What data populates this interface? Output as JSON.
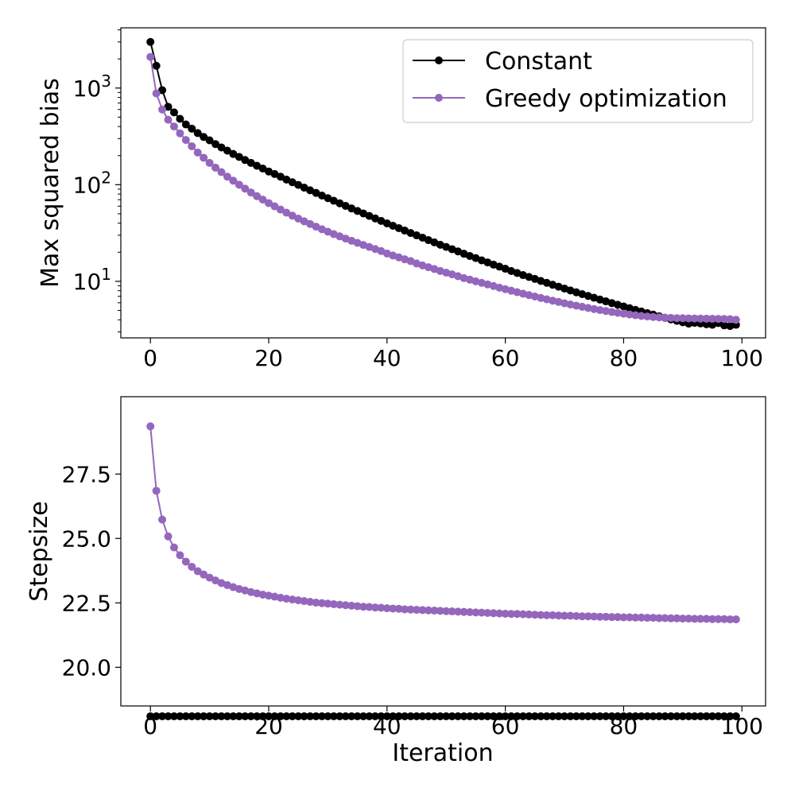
{
  "figure": {
    "xlabel": "Iteration",
    "legend": {
      "placement": "top-right",
      "entries": [
        "Constant",
        "Greedy optimization"
      ]
    }
  },
  "colors": {
    "constant": "#000000",
    "greedy": "#9467bd"
  },
  "chart_data": [
    {
      "type": "line",
      "title": "",
      "xlabel": "",
      "ylabel": "Max squared bias",
      "yscale": "log",
      "xlim": [
        -5,
        104
      ],
      "ylim": [
        2.6,
        4200
      ],
      "xticks": [
        0,
        20,
        40,
        60,
        80,
        100
      ],
      "xtick_labels": [
        "0",
        "20",
        "40",
        "60",
        "80",
        "100"
      ],
      "yticks": [
        10,
        100,
        1000
      ],
      "ytick_labels": [
        "10^1",
        "10^2",
        "10^3"
      ],
      "grid": false,
      "legend": "top-right",
      "x": [
        0,
        1,
        2,
        3,
        4,
        5,
        6,
        7,
        8,
        9,
        10,
        11,
        12,
        13,
        14,
        15,
        16,
        17,
        18,
        19,
        20,
        21,
        22,
        23,
        24,
        25,
        26,
        27,
        28,
        29,
        30,
        31,
        32,
        33,
        34,
        35,
        36,
        37,
        38,
        39,
        40,
        41,
        42,
        43,
        44,
        45,
        46,
        47,
        48,
        49,
        50,
        51,
        52,
        53,
        54,
        55,
        56,
        57,
        58,
        59,
        60,
        61,
        62,
        63,
        64,
        65,
        66,
        67,
        68,
        69,
        70,
        71,
        72,
        73,
        74,
        75,
        76,
        77,
        78,
        79,
        80,
        81,
        82,
        83,
        84,
        85,
        86,
        87,
        88,
        89,
        90,
        91,
        92,
        93,
        94,
        95,
        96,
        97,
        98,
        99
      ],
      "series": [
        {
          "name": "Constant",
          "values": [
            3000,
            1700,
            950,
            640,
            560,
            480,
            420,
            380,
            342,
            312,
            288,
            263,
            243,
            225,
            208,
            194,
            180,
            168,
            157,
            147,
            137,
            129,
            121,
            113,
            106,
            99.4,
            93.3,
            87.5,
            82.2,
            77.2,
            72.6,
            68.2,
            64.2,
            60.4,
            56.8,
            53.5,
            50.4,
            47.5,
            44.8,
            42.2,
            39.8,
            37.6,
            35.5,
            33.5,
            31.6,
            29.9,
            28.3,
            26.7,
            25.3,
            23.9,
            22.7,
            21.5,
            20.4,
            19.3,
            18.3,
            17.4,
            16.5,
            15.7,
            14.9,
            14.2,
            13.5,
            12.8,
            12.2,
            11.6,
            11.1,
            10.6,
            10.1,
            9.65,
            9.22,
            8.81,
            8.42,
            8.05,
            7.7,
            7.37,
            7.06,
            6.76,
            6.48,
            6.21,
            5.96,
            5.72,
            5.5,
            5.28,
            5.07,
            4.88,
            4.69,
            4.52,
            4.35,
            4.19,
            4.04,
            3.9,
            3.77,
            3.65,
            3.72,
            3.67,
            3.6,
            3.55,
            3.7,
            3.5,
            3.45,
            3.55
          ]
        },
        {
          "name": "Greedy optimization",
          "values": [
            2100,
            880,
            600,
            470,
            400,
            340,
            290,
            250,
            215,
            190,
            168,
            150,
            135,
            121,
            110,
            100,
            91,
            83,
            76,
            70,
            64.5,
            59.7,
            55.3,
            51.3,
            47.8,
            44.6,
            41.8,
            39.2,
            36.8,
            34.6,
            32.6,
            30.8,
            29.2,
            27.7,
            26.3,
            25.0,
            23.8,
            22.7,
            21.6,
            20.6,
            19.4,
            18.5,
            17.7,
            16.9,
            16.2,
            15.3,
            14.6,
            14.0,
            13.4,
            12.8,
            12.3,
            11.8,
            11.3,
            10.8,
            10.4,
            10.0,
            9.65,
            9.3,
            8.95,
            8.6,
            8.3,
            8.0,
            7.72,
            7.45,
            7.2,
            6.96,
            6.73,
            6.52,
            6.31,
            6.12,
            5.93,
            5.76,
            5.6,
            5.45,
            5.3,
            5.17,
            5.05,
            4.93,
            4.82,
            4.72,
            4.62,
            4.54,
            4.46,
            4.39,
            4.33,
            4.28,
            4.24,
            4.21,
            4.18,
            4.16,
            4.15,
            4.14,
            4.13,
            4.12,
            4.11,
            4.1,
            4.09,
            4.08,
            4.06,
            4.0
          ]
        }
      ]
    },
    {
      "type": "line",
      "title": "",
      "xlabel": "Iteration",
      "ylabel": "Stepsize",
      "yscale": "linear",
      "xlim": [
        -5,
        104
      ],
      "ylim": [
        18.5,
        30.5
      ],
      "xticks": [
        0,
        20,
        40,
        60,
        80,
        100
      ],
      "xtick_labels": [
        "0",
        "20",
        "40",
        "60",
        "80",
        "100"
      ],
      "yticks": [
        20.0,
        22.5,
        25.0,
        27.5
      ],
      "ytick_labels": [
        "20.0",
        "22.5",
        "25.0",
        "27.5"
      ],
      "grid": false,
      "x": [
        0,
        1,
        2,
        3,
        4,
        5,
        6,
        7,
        8,
        9,
        10,
        11,
        12,
        13,
        14,
        15,
        16,
        17,
        18,
        19,
        20,
        21,
        22,
        23,
        24,
        25,
        26,
        27,
        28,
        29,
        30,
        31,
        32,
        33,
        34,
        35,
        36,
        37,
        38,
        39,
        40,
        41,
        42,
        43,
        44,
        45,
        46,
        47,
        48,
        49,
        50,
        51,
        52,
        53,
        54,
        55,
        56,
        57,
        58,
        59,
        60,
        61,
        62,
        63,
        64,
        65,
        66,
        67,
        68,
        69,
        70,
        71,
        72,
        73,
        74,
        75,
        76,
        77,
        78,
        79,
        80,
        81,
        82,
        83,
        84,
        85,
        86,
        87,
        88,
        89,
        90,
        91,
        92,
        93,
        94,
        95,
        96,
        97,
        98,
        99
      ],
      "series": [
        {
          "name": "Constant",
          "values": [
            18.1,
            18.1,
            18.1,
            18.1,
            18.1,
            18.1,
            18.1,
            18.1,
            18.1,
            18.1,
            18.1,
            18.1,
            18.1,
            18.1,
            18.1,
            18.1,
            18.1,
            18.1,
            18.1,
            18.1,
            18.1,
            18.1,
            18.1,
            18.1,
            18.1,
            18.1,
            18.1,
            18.1,
            18.1,
            18.1,
            18.1,
            18.1,
            18.1,
            18.1,
            18.1,
            18.1,
            18.1,
            18.1,
            18.1,
            18.1,
            18.1,
            18.1,
            18.1,
            18.1,
            18.1,
            18.1,
            18.1,
            18.1,
            18.1,
            18.1,
            18.1,
            18.1,
            18.1,
            18.1,
            18.1,
            18.1,
            18.1,
            18.1,
            18.1,
            18.1,
            18.1,
            18.1,
            18.1,
            18.1,
            18.1,
            18.1,
            18.1,
            18.1,
            18.1,
            18.1,
            18.1,
            18.1,
            18.1,
            18.1,
            18.1,
            18.1,
            18.1,
            18.1,
            18.1,
            18.1,
            18.1,
            18.1,
            18.1,
            18.1,
            18.1,
            18.1,
            18.1,
            18.1,
            18.1,
            18.1,
            18.1,
            18.1,
            18.1,
            18.1,
            18.1,
            18.1,
            18.1,
            18.1,
            18.1,
            18.1
          ]
        },
        {
          "name": "Greedy optimization",
          "values": [
            29.35,
            26.85,
            25.73,
            25.08,
            24.65,
            24.35,
            24.1,
            23.9,
            23.73,
            23.6,
            23.48,
            23.37,
            23.27,
            23.19,
            23.11,
            23.04,
            22.98,
            22.92,
            22.87,
            22.82,
            22.78,
            22.74,
            22.7,
            22.66,
            22.63,
            22.6,
            22.57,
            22.54,
            22.51,
            22.49,
            22.47,
            22.45,
            22.43,
            22.41,
            22.39,
            22.37,
            22.35,
            22.34,
            22.32,
            22.31,
            22.29,
            22.28,
            22.27,
            22.25,
            22.24,
            22.23,
            22.22,
            22.21,
            22.2,
            22.19,
            22.18,
            22.17,
            22.16,
            22.15,
            22.14,
            22.13,
            22.12,
            22.11,
            22.1,
            22.09,
            22.08,
            22.07,
            22.07,
            22.06,
            22.05,
            22.04,
            22.03,
            22.02,
            22.02,
            22.01,
            22.0,
            22.0,
            21.99,
            21.98,
            21.98,
            21.97,
            21.96,
            21.96,
            21.95,
            21.95,
            21.94,
            21.94,
            21.93,
            21.93,
            21.92,
            21.92,
            21.91,
            21.91,
            21.9,
            21.9,
            21.89,
            21.89,
            21.88,
            21.88,
            21.88,
            21.87,
            21.87,
            21.87,
            21.86,
            21.86
          ]
        }
      ]
    }
  ]
}
